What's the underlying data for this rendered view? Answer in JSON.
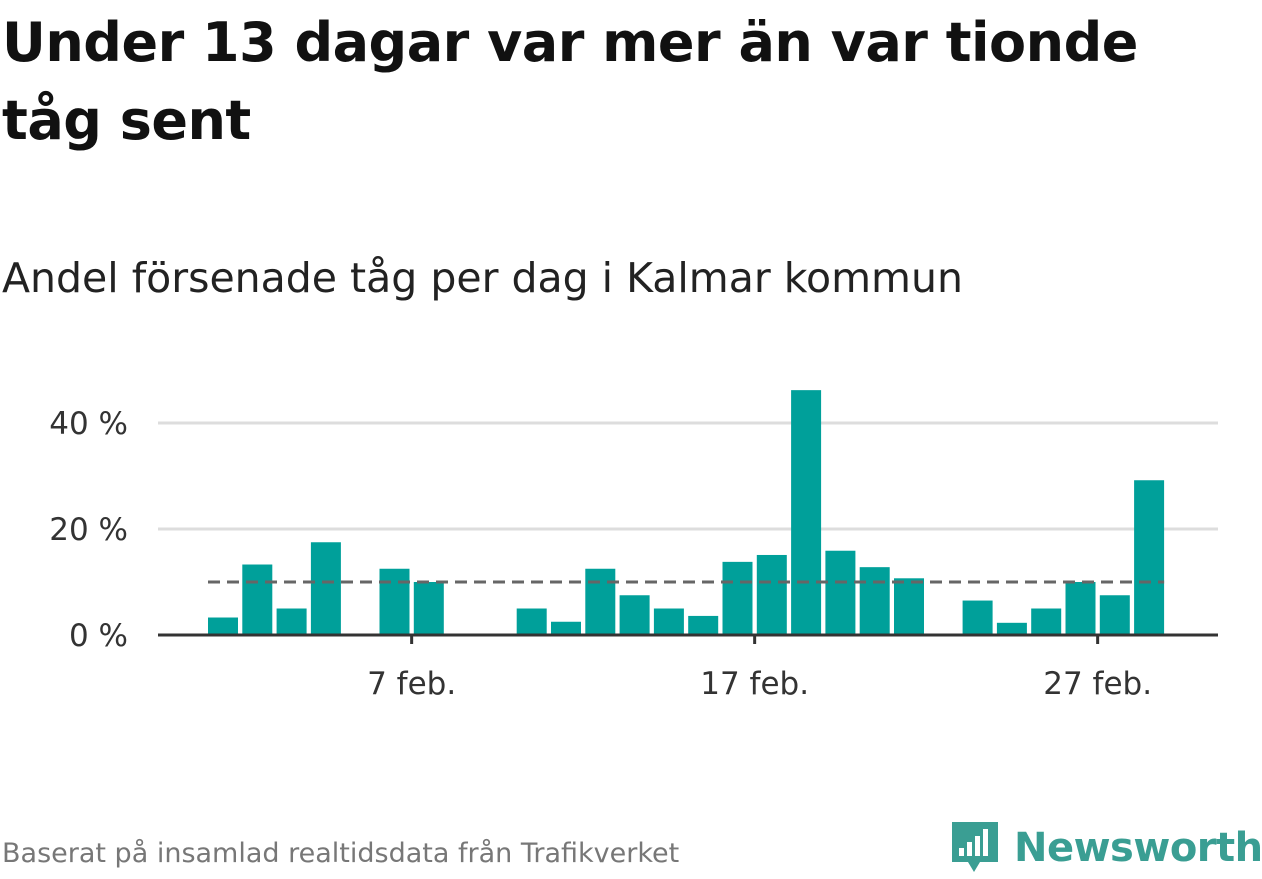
{
  "title": "Under 13 dagar var mer än var tionde tåg sent",
  "subtitle": "Andel försenade tåg per dag i Kalmar kommun",
  "source": "Baserat på insamlad realtidsdata från Trafikverket",
  "brand": {
    "name": "Newsworthy",
    "color": "#3a9e93"
  },
  "colors": {
    "bar": "#00a09a",
    "reference_line": "#666666",
    "grid": "#dddddd",
    "axis": "#333333"
  },
  "chart_data": {
    "type": "bar",
    "x_unit": "day",
    "days": [
      1,
      2,
      3,
      4,
      5,
      6,
      7,
      8,
      9,
      10,
      11,
      12,
      13,
      14,
      15,
      16,
      17,
      18,
      19,
      20,
      21,
      22,
      23,
      24,
      25,
      26,
      27,
      28
    ],
    "values": [
      3.3,
      13.3,
      5,
      17.5,
      null,
      12.5,
      10,
      null,
      null,
      5,
      2.5,
      12.5,
      7.5,
      5,
      3.6,
      13.8,
      15.1,
      46.2,
      15.9,
      12.8,
      10.7,
      null,
      6.5,
      2.3,
      5,
      10,
      7.5,
      29.2
    ],
    "reference_value": 10,
    "reference_style": "dashed",
    "x_ticks": [
      {
        "day": 7,
        "label": "7 feb."
      },
      {
        "day": 17,
        "label": "17 feb."
      },
      {
        "day": 27,
        "label": "27 feb."
      }
    ],
    "y_ticks": [
      {
        "value": 0,
        "label": "0 %"
      },
      {
        "value": 20,
        "label": "20 %"
      },
      {
        "value": 40,
        "label": "40 %"
      }
    ],
    "ylim": [
      0,
      50
    ],
    "grid": true
  }
}
